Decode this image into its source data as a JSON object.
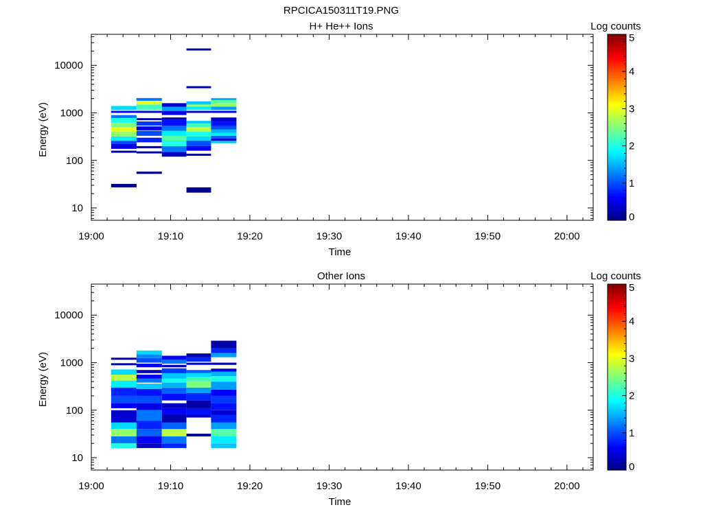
{
  "figure_title": "RPCICA150311T19.PNG",
  "chart_data": [
    {
      "type": "heatmap",
      "title": "H+ He++ Ions",
      "xlabel": "Time",
      "ylabel": "Energy (eV)",
      "x_ticks": [
        "19:00",
        "19:10",
        "19:20",
        "19:30",
        "19:40",
        "19:50",
        "20:00"
      ],
      "x_tick_minutes": [
        0,
        10,
        20,
        30,
        40,
        50,
        60
      ],
      "xlim_minutes": [
        0,
        63.3
      ],
      "y_scale": "log",
      "ylim": [
        5.5,
        45000
      ],
      "y_ticks": [
        "10",
        "100",
        "1000",
        "10000"
      ],
      "y_tick_values": [
        10,
        100,
        1000,
        10000
      ],
      "colorbar": {
        "label": "Log counts",
        "range": [
          0,
          5
        ],
        "ticks": [
          "0",
          "1",
          "2",
          "3",
          "4",
          "5"
        ],
        "colormap": "jet"
      },
      "sweeps": [
        {
          "t0": 2.5,
          "t1": 5.7,
          "bins": [
            [
              27,
              32,
              0.1
            ],
            [
              145,
              160,
              0.2
            ],
            [
              175,
              220,
              0.5
            ],
            [
              220,
              260,
              1.0
            ],
            [
              260,
              320,
              1.8
            ],
            [
              320,
              400,
              2.6
            ],
            [
              400,
              500,
              3.0
            ],
            [
              500,
              620,
              2.5
            ],
            [
              620,
              780,
              2.0
            ],
            [
              780,
              900,
              1.2
            ],
            [
              1000,
              1080,
              0.6
            ],
            [
              1150,
              1400,
              1.7
            ]
          ]
        },
        {
          "t0": 5.7,
          "t1": 8.9,
          "bins": [
            [
              52,
              58,
              0.1
            ],
            [
              140,
              150,
              0.2
            ],
            [
              180,
              200,
              0.3
            ],
            [
              240,
              300,
              0.8
            ],
            [
              330,
              420,
              1.0
            ],
            [
              430,
              520,
              0.5
            ],
            [
              540,
              660,
              0.9
            ],
            [
              700,
              760,
              0.2
            ],
            [
              1000,
              1100,
              0.4
            ],
            [
              1150,
              1500,
              2.2
            ],
            [
              1500,
              1800,
              3.0
            ],
            [
              1800,
              2050,
              1.2
            ]
          ]
        },
        {
          "t0": 8.9,
          "t1": 12.0,
          "bins": [
            [
              120,
              150,
              0.3
            ],
            [
              150,
              200,
              1.2
            ],
            [
              200,
              260,
              2.0
            ],
            [
              260,
              330,
              2.3
            ],
            [
              330,
              420,
              1.8
            ],
            [
              420,
              540,
              1.2
            ],
            [
              540,
              720,
              0.7
            ],
            [
              720,
              800,
              0.3
            ],
            [
              900,
              1100,
              0.5
            ],
            [
              1100,
              1350,
              1.4
            ],
            [
              1350,
              1600,
              0.4
            ]
          ]
        },
        {
          "t0": 12.0,
          "t1": 15.1,
          "bins": [
            [
              21,
              27,
              0.1
            ],
            [
              125,
              135,
              0.1
            ],
            [
              160,
              200,
              0.6
            ],
            [
              200,
              260,
              1.0
            ],
            [
              260,
              320,
              1.7
            ],
            [
              320,
              400,
              2.0
            ],
            [
              400,
              500,
              2.8
            ],
            [
              500,
              600,
              2.2
            ],
            [
              600,
              680,
              1.6
            ],
            [
              1000,
              1100,
              0.3
            ],
            [
              1150,
              1350,
              1.8
            ],
            [
              1350,
              1500,
              2.6
            ],
            [
              1500,
              1750,
              1.6
            ],
            [
              3300,
              3600,
              0.2
            ],
            [
              20500,
              22000,
              0.2
            ]
          ]
        },
        {
          "t0": 15.1,
          "t1": 18.3,
          "bins": [
            [
              230,
              260,
              1.6
            ],
            [
              260,
              290,
              0.4
            ],
            [
              290,
              330,
              1.1
            ],
            [
              330,
              380,
              1.8
            ],
            [
              380,
              450,
              1.5
            ],
            [
              450,
              540,
              1.0
            ],
            [
              540,
              650,
              0.7
            ],
            [
              650,
              800,
              0.4
            ],
            [
              1000,
              1100,
              0.5
            ],
            [
              1150,
              1350,
              1.4
            ],
            [
              1350,
              1600,
              2.6
            ],
            [
              1600,
              1850,
              2.3
            ],
            [
              1850,
              2050,
              1.5
            ]
          ]
        }
      ]
    },
    {
      "type": "heatmap",
      "title": "Other Ions",
      "xlabel": "Time",
      "ylabel": "Energy (eV)",
      "x_ticks": [
        "19:00",
        "19:10",
        "19:20",
        "19:30",
        "19:40",
        "19:50",
        "20:00"
      ],
      "x_tick_minutes": [
        0,
        10,
        20,
        30,
        40,
        50,
        60
      ],
      "xlim_minutes": [
        0,
        63.3
      ],
      "y_scale": "log",
      "ylim": [
        5.5,
        45000
      ],
      "y_ticks": [
        "10",
        "100",
        "1000",
        "10000"
      ],
      "y_tick_values": [
        10,
        100,
        1000,
        10000
      ],
      "colorbar": {
        "label": "Log counts",
        "range": [
          0,
          5
        ],
        "ticks": [
          "0",
          "1",
          "2",
          "3",
          "4",
          "5"
        ],
        "colormap": "jet"
      },
      "sweeps": [
        {
          "t0": 2.5,
          "t1": 5.7,
          "bins": [
            [
              16,
              20,
              2.0
            ],
            [
              20,
              28,
              1.2
            ],
            [
              28,
              40,
              2.6
            ],
            [
              40,
              55,
              1.7
            ],
            [
              55,
              90,
              0.4
            ],
            [
              90,
              100,
              0.3
            ],
            [
              110,
              140,
              0.6
            ],
            [
              140,
              200,
              1.0
            ],
            [
              200,
              300,
              0.8
            ],
            [
              300,
              420,
              1.8
            ],
            [
              420,
              560,
              2.8
            ],
            [
              560,
              720,
              1.7
            ],
            [
              880,
              950,
              0.3
            ],
            [
              1150,
              1260,
              0.2
            ]
          ]
        },
        {
          "t0": 5.7,
          "t1": 8.9,
          "bins": [
            [
              16,
              20,
              0.3
            ],
            [
              20,
              28,
              0.6
            ],
            [
              28,
              40,
              1.1
            ],
            [
              40,
              60,
              0.8
            ],
            [
              60,
              100,
              1.2
            ],
            [
              100,
              140,
              0.5
            ],
            [
              140,
              200,
              1.0
            ],
            [
              200,
              280,
              0.7
            ],
            [
              280,
              360,
              1.6
            ],
            [
              380,
              460,
              1.2
            ],
            [
              460,
              560,
              0.6
            ],
            [
              600,
              700,
              0.3
            ],
            [
              800,
              950,
              0.6
            ],
            [
              1000,
              1250,
              1.0
            ],
            [
              1250,
              1500,
              1.3
            ],
            [
              1500,
              1800,
              1.7
            ]
          ]
        },
        {
          "t0": 8.9,
          "t1": 12.0,
          "bins": [
            [
              16,
              20,
              0.8
            ],
            [
              20,
              28,
              1.2
            ],
            [
              28,
              40,
              2.8
            ],
            [
              40,
              55,
              1.1
            ],
            [
              55,
              80,
              0.2
            ],
            [
              80,
              110,
              0.6
            ],
            [
              110,
              140,
              0.3
            ],
            [
              160,
              220,
              0.7
            ],
            [
              220,
              300,
              1.1
            ],
            [
              300,
              380,
              1.5
            ],
            [
              380,
              460,
              2.0
            ],
            [
              460,
              600,
              1.6
            ],
            [
              600,
              760,
              0.9
            ],
            [
              800,
              900,
              0.3
            ],
            [
              950,
              1150,
              1.2
            ],
            [
              1150,
              1400,
              0.6
            ]
          ]
        },
        {
          "t0": 12.0,
          "t1": 15.1,
          "bins": [
            [
              28,
              32,
              0.1
            ],
            [
              70,
              80,
              0.4
            ],
            [
              80,
              110,
              0.7
            ],
            [
              110,
              160,
              0.2
            ],
            [
              160,
              230,
              0.8
            ],
            [
              230,
              300,
              1.4
            ],
            [
              300,
              400,
              2.5
            ],
            [
              400,
              500,
              2.2
            ],
            [
              500,
              600,
              1.7
            ],
            [
              600,
              700,
              1.1
            ],
            [
              900,
              1000,
              0.4
            ],
            [
              1050,
              1300,
              0.8
            ],
            [
              1300,
              1560,
              0.2
            ]
          ]
        },
        {
          "t0": 15.1,
          "t1": 18.3,
          "bins": [
            [
              16,
              20,
              1.6
            ],
            [
              20,
              28,
              1.8
            ],
            [
              28,
              40,
              2.3
            ],
            [
              40,
              55,
              1.4
            ],
            [
              55,
              80,
              0.8
            ],
            [
              80,
              100,
              0.4
            ],
            [
              100,
              140,
              0.7
            ],
            [
              140,
              200,
              0.9
            ],
            [
              200,
              270,
              0.6
            ],
            [
              270,
              400,
              1.4
            ],
            [
              400,
              520,
              2.0
            ],
            [
              520,
              650,
              1.5
            ],
            [
              650,
              750,
              0.5
            ],
            [
              900,
              1000,
              0.3
            ],
            [
              1300,
              1600,
              1.4
            ],
            [
              1600,
              2000,
              0.8
            ],
            [
              2000,
              2900,
              0.2
            ]
          ]
        }
      ]
    }
  ]
}
